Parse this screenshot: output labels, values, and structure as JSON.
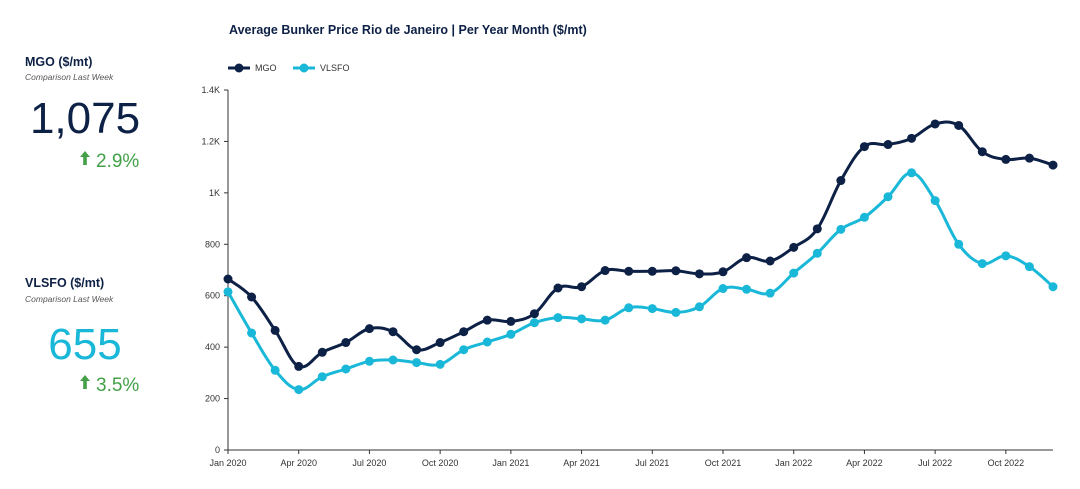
{
  "kpis": {
    "mgo": {
      "title": "MGO ($/mt)",
      "subtitle": "Comparison Last Week",
      "value": "1,075",
      "change": "2.9%",
      "direction": "up",
      "value_color": "#0d2045"
    },
    "vlsfo": {
      "title": "VLSFO ($/mt)",
      "subtitle": "Comparison Last Week",
      "value": "655",
      "change": "3.5%",
      "direction": "up",
      "value_color": "#1ab8d8"
    },
    "change_color": "#43a047"
  },
  "chart_data": {
    "type": "line",
    "title": "Average Bunker Price Rio de Janeiro | Per Year Month ($/mt)",
    "xlabel": "",
    "ylabel": "",
    "ylim": [
      0,
      1400
    ],
    "y_ticks": [
      0,
      200,
      400,
      600,
      800,
      1000,
      1200,
      1400
    ],
    "y_tick_labels": [
      "0",
      "200",
      "400",
      "600",
      "800",
      "1K",
      "1.2K",
      "1.4K"
    ],
    "x_tick_labels": [
      "Jan 2020",
      "Apr 2020",
      "Jul 2020",
      "Oct 2020",
      "Jan 2021",
      "Apr 2021",
      "Jul 2021",
      "Oct 2021",
      "Jan 2022",
      "Apr 2022",
      "Jul 2022",
      "Oct 2022"
    ],
    "x": [
      "2020-01",
      "2020-02",
      "2020-03",
      "2020-04",
      "2020-05",
      "2020-06",
      "2020-07",
      "2020-08",
      "2020-09",
      "2020-10",
      "2020-11",
      "2020-12",
      "2021-01",
      "2021-02",
      "2021-03",
      "2021-04",
      "2021-05",
      "2021-06",
      "2021-07",
      "2021-08",
      "2021-09",
      "2021-10",
      "2021-11",
      "2021-12",
      "2022-01",
      "2022-02",
      "2022-03",
      "2022-04",
      "2022-05",
      "2022-06",
      "2022-07",
      "2022-08",
      "2022-09",
      "2022-10",
      "2022-11",
      "2022-12"
    ],
    "series": [
      {
        "name": "MGO",
        "color": "#0d2045",
        "values": [
          665,
          595,
          465,
          325,
          380,
          418,
          472,
          460,
          390,
          418,
          460,
          505,
          500,
          530,
          630,
          635,
          698,
          695,
          695,
          697,
          685,
          693,
          748,
          735,
          788,
          860,
          1048,
          1180,
          1188,
          1212,
          1268,
          1262,
          1160,
          1130,
          1135,
          1108
        ]
      },
      {
        "name": "VLSFO",
        "color": "#1ab8d8",
        "values": [
          615,
          455,
          310,
          235,
          285,
          315,
          345,
          350,
          340,
          333,
          390,
          420,
          450,
          495,
          515,
          510,
          505,
          553,
          550,
          535,
          557,
          628,
          625,
          610,
          688,
          765,
          858,
          905,
          985,
          1078,
          970,
          800,
          725,
          755,
          713,
          635
        ]
      }
    ],
    "grid": false,
    "legend_position": "top-left"
  }
}
